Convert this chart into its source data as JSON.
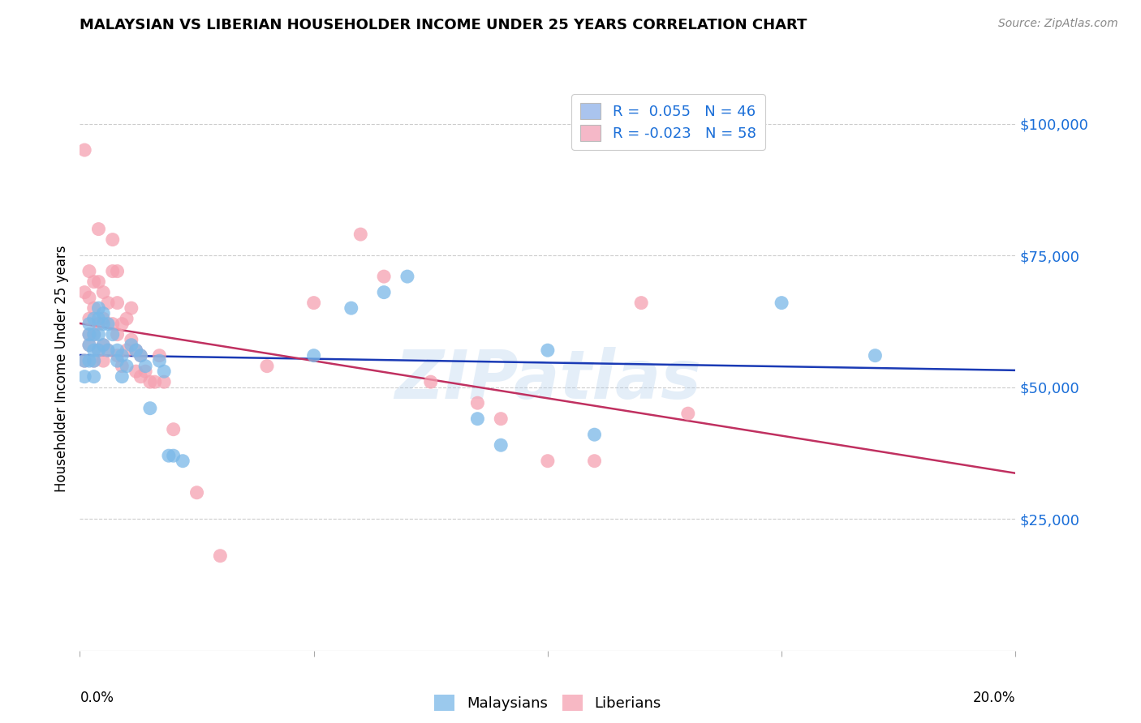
{
  "title": "MALAYSIAN VS LIBERIAN HOUSEHOLDER INCOME UNDER 25 YEARS CORRELATION CHART",
  "source": "Source: ZipAtlas.com",
  "ylabel": "Householder Income Under 25 years",
  "xmin": 0.0,
  "xmax": 0.2,
  "ymin": 0,
  "ymax": 107000,
  "legend_entries": [
    {
      "label": "R =  0.055   N = 46",
      "facecolor": "#aac4ee"
    },
    {
      "label": "R = -0.023   N = 58",
      "facecolor": "#f5b8c8"
    }
  ],
  "bottom_legend": [
    {
      "label": "Malaysians",
      "facecolor": "#7ab8e8"
    },
    {
      "label": "Liberians",
      "facecolor": "#f5a0b0"
    }
  ],
  "malaysian_color": "#7ab8e8",
  "liberian_color": "#f5a0b0",
  "trend_malaysian_color": "#1a3ab5",
  "trend_liberian_color": "#c03060",
  "watermark": "ZIPatlas",
  "malaysian_x": [
    0.001,
    0.001,
    0.002,
    0.002,
    0.002,
    0.002,
    0.003,
    0.003,
    0.003,
    0.003,
    0.003,
    0.004,
    0.004,
    0.004,
    0.004,
    0.005,
    0.005,
    0.005,
    0.006,
    0.006,
    0.007,
    0.008,
    0.008,
    0.009,
    0.009,
    0.01,
    0.011,
    0.012,
    0.013,
    0.014,
    0.015,
    0.017,
    0.018,
    0.019,
    0.02,
    0.022,
    0.05,
    0.058,
    0.065,
    0.07,
    0.085,
    0.09,
    0.1,
    0.11,
    0.15,
    0.17
  ],
  "malaysian_y": [
    55000,
    52000,
    62000,
    60000,
    58000,
    55000,
    63000,
    60000,
    57000,
    55000,
    52000,
    65000,
    63000,
    60000,
    57000,
    64000,
    62000,
    58000,
    62000,
    57000,
    60000,
    57000,
    55000,
    56000,
    52000,
    54000,
    58000,
    57000,
    56000,
    54000,
    46000,
    55000,
    53000,
    37000,
    37000,
    36000,
    56000,
    65000,
    68000,
    71000,
    44000,
    39000,
    57000,
    41000,
    66000,
    56000
  ],
  "liberian_x": [
    0.001,
    0.001,
    0.001,
    0.002,
    0.002,
    0.002,
    0.002,
    0.002,
    0.003,
    0.003,
    0.003,
    0.003,
    0.004,
    0.004,
    0.004,
    0.004,
    0.005,
    0.005,
    0.005,
    0.005,
    0.006,
    0.006,
    0.007,
    0.007,
    0.007,
    0.008,
    0.008,
    0.008,
    0.008,
    0.009,
    0.009,
    0.01,
    0.01,
    0.011,
    0.011,
    0.012,
    0.012,
    0.013,
    0.013,
    0.014,
    0.015,
    0.016,
    0.017,
    0.018,
    0.02,
    0.025,
    0.03,
    0.04,
    0.05,
    0.06,
    0.065,
    0.075,
    0.085,
    0.09,
    0.1,
    0.11,
    0.12,
    0.13
  ],
  "liberian_y": [
    95000,
    68000,
    55000,
    72000,
    67000,
    63000,
    60000,
    58000,
    70000,
    65000,
    60000,
    55000,
    80000,
    70000,
    62000,
    57000,
    68000,
    63000,
    58000,
    55000,
    66000,
    57000,
    78000,
    72000,
    62000,
    72000,
    66000,
    60000,
    56000,
    62000,
    54000,
    63000,
    57000,
    65000,
    59000,
    57000,
    53000,
    56000,
    52000,
    53000,
    51000,
    51000,
    56000,
    51000,
    42000,
    30000,
    18000,
    54000,
    66000,
    79000,
    71000,
    51000,
    47000,
    44000,
    36000,
    36000,
    66000,
    45000
  ]
}
